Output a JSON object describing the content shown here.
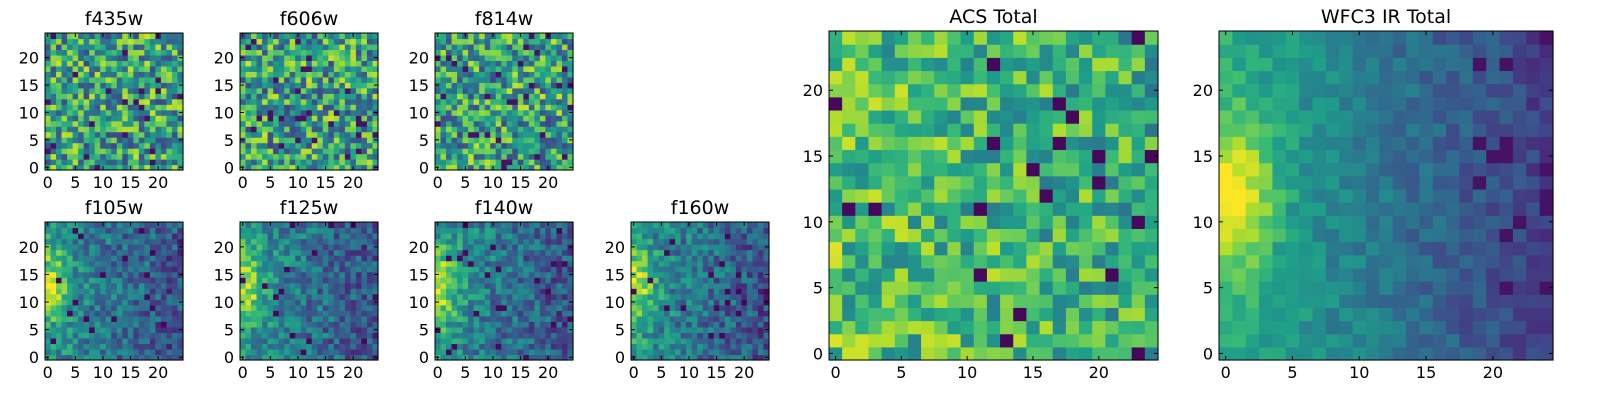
{
  "chart_data": [
    {
      "type": "heatmap",
      "title": "f435w",
      "xticks": [
        0,
        5,
        10,
        15,
        20
      ],
      "yticks": [
        0,
        5,
        10,
        15,
        20
      ],
      "xlim": [
        -0.5,
        24.5
      ],
      "ylim": [
        -0.5,
        24.5
      ],
      "grid_size": 25,
      "colormap": "viridis",
      "pattern": "noise"
    },
    {
      "type": "heatmap",
      "title": "f606w",
      "xticks": [
        0,
        5,
        10,
        15,
        20
      ],
      "yticks": [
        0,
        5,
        10,
        15,
        20
      ],
      "xlim": [
        -0.5,
        24.5
      ],
      "ylim": [
        -0.5,
        24.5
      ],
      "grid_size": 25,
      "colormap": "viridis",
      "pattern": "noise"
    },
    {
      "type": "heatmap",
      "title": "f814w",
      "xticks": [
        0,
        5,
        10,
        15,
        20
      ],
      "yticks": [
        0,
        5,
        10,
        15,
        20
      ],
      "xlim": [
        -0.5,
        24.5
      ],
      "ylim": [
        -0.5,
        24.5
      ],
      "grid_size": 25,
      "colormap": "viridis",
      "pattern": "noise"
    },
    {
      "type": "heatmap",
      "title": "f105w",
      "xticks": [
        0,
        5,
        10,
        15,
        20
      ],
      "yticks": [
        0,
        5,
        10,
        15,
        20
      ],
      "xlim": [
        -0.5,
        24.5
      ],
      "ylim": [
        -0.5,
        24.5
      ],
      "grid_size": 25,
      "colormap": "viridis",
      "pattern": "gradient-left-bright"
    },
    {
      "type": "heatmap",
      "title": "f125w",
      "xticks": [
        0,
        5,
        10,
        15,
        20
      ],
      "yticks": [
        0,
        5,
        10,
        15,
        20
      ],
      "xlim": [
        -0.5,
        24.5
      ],
      "ylim": [
        -0.5,
        24.5
      ],
      "grid_size": 25,
      "colormap": "viridis",
      "pattern": "gradient-left-bright"
    },
    {
      "type": "heatmap",
      "title": "f140w",
      "xticks": [
        0,
        5,
        10,
        15,
        20
      ],
      "yticks": [
        0,
        5,
        10,
        15,
        20
      ],
      "xlim": [
        -0.5,
        24.5
      ],
      "ylim": [
        -0.5,
        24.5
      ],
      "grid_size": 25,
      "colormap": "viridis",
      "pattern": "gradient-left-bright"
    },
    {
      "type": "heatmap",
      "title": "f160w",
      "xticks": [
        0,
        5,
        10,
        15,
        20
      ],
      "yticks": [
        0,
        5,
        10,
        15,
        20
      ],
      "xlim": [
        -0.5,
        24.5
      ],
      "ylim": [
        -0.5,
        24.5
      ],
      "grid_size": 25,
      "colormap": "viridis",
      "pattern": "gradient-left-bright"
    },
    {
      "type": "heatmap",
      "title": "ACS Total",
      "xticks": [
        0,
        5,
        10,
        15,
        20
      ],
      "yticks": [
        0,
        5,
        10,
        15,
        20
      ],
      "xlim": [
        -0.5,
        24.5
      ],
      "ylim": [
        -0.5,
        24.5
      ],
      "grid_size": 25,
      "colormap": "viridis",
      "pattern": "noise-bright"
    },
    {
      "type": "heatmap",
      "title": "WFC3 IR Total",
      "xticks": [
        0,
        5,
        10,
        15,
        20
      ],
      "yticks": [
        0,
        5,
        10,
        15,
        20
      ],
      "xlim": [
        -0.5,
        24.5
      ],
      "ylim": [
        -0.5,
        24.5
      ],
      "grid_size": 25,
      "colormap": "viridis",
      "pattern": "smooth-gradient"
    }
  ]
}
